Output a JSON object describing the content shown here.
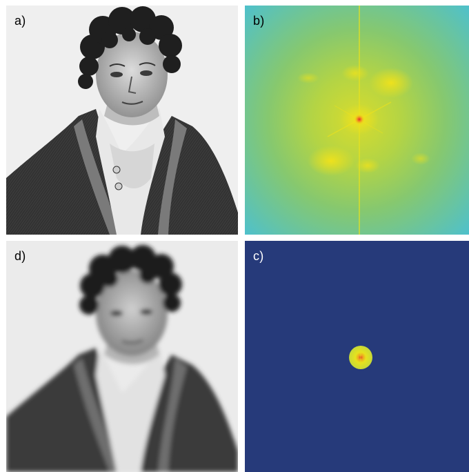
{
  "panels": {
    "a": {
      "label": "a)"
    },
    "b": {
      "label": "b)"
    },
    "d": {
      "label": "d)"
    },
    "c": {
      "label": "c)"
    }
  },
  "colors": {
    "spectrum_outer": "#4cc0d0",
    "spectrum_mid": "#8fcf6a",
    "spectrum_inner": "#e6e21e",
    "spectrum_peak": "#e2302a",
    "filtered_background": "#263a7a",
    "portrait_paper": "#eeeeee",
    "portrait_ink": "#2a2a2a"
  }
}
